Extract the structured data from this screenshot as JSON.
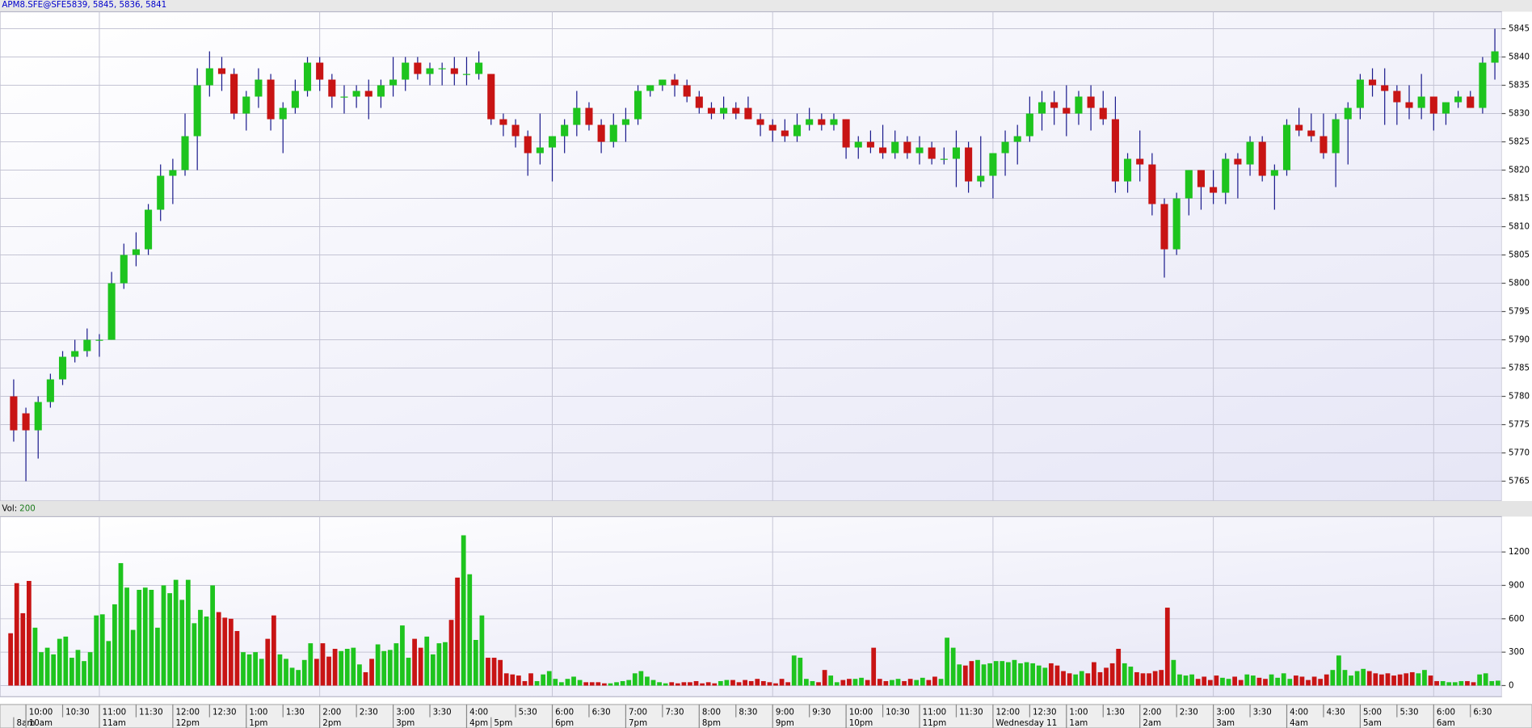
{
  "chart_data": {
    "type": "candlestick",
    "title": "APM8.SFE@SFE:",
    "subtitle": "5839, 5845, 5836, 5841",
    "up_color": "#1ec41e",
    "down_color": "#c81414",
    "wick_color": "#1a1a8c",
    "grid": true,
    "open": [
      5780,
      5777,
      5774,
      5779,
      5783,
      5787,
      5788,
      5790,
      5790,
      5800,
      5805,
      5806,
      5813,
      5819,
      5820,
      5826,
      5835,
      5838,
      5837,
      5830,
      5833,
      5836,
      5829,
      5831,
      5834,
      5839,
      5836,
      5833,
      5833,
      5834,
      5833,
      5835,
      5836,
      5839,
      5837,
      5838,
      5838,
      5837,
      5837,
      5837,
      5829,
      5828,
      5826,
      5823,
      5824,
      5826,
      5828,
      5831,
      5828,
      5825,
      5828,
      5829,
      5834,
      5835,
      5836,
      5835,
      5833,
      5831,
      5830,
      5831,
      5831,
      5829,
      5828,
      5827,
      5826,
      5828,
      5829,
      5828,
      5829,
      5824,
      5825,
      5824,
      5823,
      5825,
      5823,
      5824,
      5822,
      5822,
      5824,
      5818,
      5819,
      5823,
      5825,
      5826,
      5830,
      5832,
      5831,
      5830,
      5833,
      5831,
      5829,
      5818,
      5822,
      5821,
      5814,
      5806,
      5815,
      5820,
      5817,
      5816,
      5822,
      5821,
      5825,
      5819,
      5820,
      5828,
      5827,
      5826,
      5823,
      5829,
      5831,
      5836,
      5835,
      5834,
      5832,
      5831,
      5833,
      5830,
      5832,
      5833,
      5831,
      5839
    ],
    "high": [
      5783,
      5778,
      5780,
      5784,
      5788,
      5790,
      5792,
      5791,
      5802,
      5807,
      5809,
      5814,
      5821,
      5822,
      5830,
      5838,
      5841,
      5840,
      5838,
      5834,
      5838,
      5837,
      5832,
      5836,
      5840,
      5840,
      5837,
      5835,
      5835,
      5836,
      5836,
      5840,
      5840,
      5840,
      5839,
      5839,
      5840,
      5840,
      5841,
      5837,
      5830,
      5829,
      5827,
      5830,
      5826,
      5829,
      5834,
      5832,
      5829,
      5830,
      5831,
      5835,
      5835,
      5836,
      5837,
      5836,
      5834,
      5832,
      5833,
      5832,
      5833,
      5830,
      5829,
      5829,
      5830,
      5831,
      5830,
      5830,
      5829,
      5826,
      5827,
      5828,
      5827,
      5826,
      5826,
      5825,
      5824,
      5827,
      5825,
      5826,
      5823,
      5827,
      5828,
      5833,
      5834,
      5834,
      5835,
      5834,
      5835,
      5834,
      5833,
      5823,
      5827,
      5823,
      5815,
      5816,
      5820,
      5820,
      5820,
      5823,
      5823,
      5826,
      5826,
      5821,
      5829,
      5831,
      5830,
      5830,
      5830,
      5832,
      5837,
      5838,
      5838,
      5835,
      5835,
      5837,
      5833,
      5832,
      5834,
      5834,
      5840,
      5845
    ],
    "low": [
      5772,
      5765,
      5769,
      5778,
      5782,
      5786,
      5787,
      5787,
      5790,
      5799,
      5803,
      5805,
      5811,
      5814,
      5819,
      5820,
      5833,
      5834,
      5829,
      5827,
      5831,
      5827,
      5823,
      5830,
      5833,
      5834,
      5831,
      5830,
      5831,
      5829,
      5831,
      5833,
      5834,
      5836,
      5835,
      5835,
      5835,
      5835,
      5836,
      5828,
      5826,
      5824,
      5819,
      5821,
      5818,
      5823,
      5826,
      5827,
      5823,
      5824,
      5825,
      5828,
      5833,
      5834,
      5833,
      5832,
      5830,
      5829,
      5829,
      5829,
      5829,
      5826,
      5825,
      5825,
      5825,
      5827,
      5827,
      5827,
      5822,
      5822,
      5823,
      5822,
      5822,
      5822,
      5821,
      5821,
      5821,
      5817,
      5816,
      5817,
      5815,
      5819,
      5821,
      5825,
      5827,
      5828,
      5826,
      5828,
      5827,
      5828,
      5816,
      5816,
      5818,
      5812,
      5801,
      5805,
      5812,
      5813,
      5814,
      5814,
      5815,
      5819,
      5818,
      5813,
      5819,
      5826,
      5825,
      5822,
      5817,
      5821,
      5829,
      5833,
      5828,
      5828,
      5829,
      5829,
      5827,
      5828,
      5831,
      5831,
      5830,
      5836
    ],
    "close": [
      5774,
      5774,
      5779,
      5783,
      5787,
      5788,
      5790,
      5790,
      5800,
      5805,
      5806,
      5813,
      5819,
      5820,
      5826,
      5835,
      5838,
      5837,
      5830,
      5833,
      5836,
      5829,
      5831,
      5834,
      5839,
      5836,
      5833,
      5833,
      5834,
      5833,
      5835,
      5836,
      5839,
      5837,
      5838,
      5838,
      5837,
      5837,
      5839,
      5829,
      5828,
      5826,
      5823,
      5824,
      5826,
      5828,
      5831,
      5828,
      5825,
      5828,
      5829,
      5834,
      5835,
      5836,
      5835,
      5833,
      5831,
      5830,
      5831,
      5830,
      5829,
      5828,
      5827,
      5826,
      5828,
      5829,
      5828,
      5829,
      5824,
      5825,
      5824,
      5823,
      5825,
      5823,
      5824,
      5822,
      5822,
      5824,
      5818,
      5819,
      5823,
      5825,
      5826,
      5830,
      5832,
      5831,
      5830,
      5833,
      5831,
      5829,
      5818,
      5822,
      5821,
      5814,
      5806,
      5815,
      5820,
      5817,
      5816,
      5822,
      5821,
      5825,
      5819,
      5820,
      5828,
      5827,
      5826,
      5823,
      5829,
      5831,
      5836,
      5835,
      5834,
      5832,
      5831,
      5833,
      5830,
      5832,
      5833,
      5831,
      5839,
      5841
    ],
    "ylim": [
      5761.5,
      5848
    ],
    "yticks": [
      5765,
      5770,
      5775,
      5780,
      5785,
      5790,
      5795,
      5800,
      5805,
      5810,
      5815,
      5820,
      5825,
      5830,
      5835,
      5840,
      5845
    ],
    "volume": {
      "name": "Vol:",
      "ylim": [
        -100,
        1500
      ],
      "yticks": [
        0,
        300,
        600,
        900,
        1200
      ],
      "values": [
        470,
        920,
        650,
        940,
        520,
        300,
        340,
        280,
        420,
        440,
        250,
        320,
        220,
        300,
        630,
        640,
        400,
        730,
        1100,
        880,
        500,
        860,
        880,
        860,
        520,
        900,
        830,
        950,
        770,
        950,
        560,
        680,
        620,
        900,
        660,
        610,
        600,
        490,
        300,
        280,
        300,
        240,
        420,
        630,
        280,
        240,
        160,
        140,
        230,
        380,
        240,
        380,
        260,
        330,
        310,
        330,
        340,
        190,
        120,
        240,
        370,
        310,
        320,
        380,
        540,
        250,
        420,
        340,
        440,
        280,
        380,
        390,
        590,
        970,
        1350,
        1000,
        410,
        630,
        250,
        250,
        230,
        110,
        100,
        90,
        40,
        110,
        40,
        100,
        130,
        60,
        30,
        60,
        80,
        50,
        30,
        30,
        30,
        20,
        20,
        30,
        40,
        50,
        110,
        130,
        80,
        50,
        30,
        20,
        30,
        20,
        30,
        30,
        40,
        20,
        30,
        20,
        40,
        50,
        50,
        30,
        50,
        40,
        60,
        40,
        30,
        20,
        60,
        30,
        270,
        250,
        60,
        40,
        30,
        140,
        90,
        30,
        50,
        60,
        60,
        70,
        50,
        340,
        60,
        40,
        50,
        60,
        40,
        60,
        50,
        70,
        50,
        80,
        60,
        430,
        340,
        190,
        180,
        220,
        230,
        190,
        200,
        220,
        220,
        210,
        230,
        200,
        210,
        200,
        180,
        160,
        200,
        180,
        130,
        110,
        100,
        130,
        110,
        210,
        120,
        160,
        200,
        330,
        200,
        170,
        120,
        110,
        110,
        130,
        140,
        700,
        230,
        100,
        90,
        100,
        60,
        80,
        50,
        90,
        70,
        60,
        80,
        50,
        100,
        90,
        70,
        60,
        100,
        70,
        110,
        60,
        90,
        80,
        50,
        80,
        60,
        100,
        140,
        270,
        140,
        90,
        130,
        150,
        130,
        110,
        100,
        110,
        90,
        100,
        110,
        120,
        110,
        140,
        90,
        40,
        40,
        30,
        30,
        40,
        40,
        30,
        100,
        110,
        40,
        44
      ]
    },
    "xticks": [
      {
        "value": 1,
        "label": "10:00"
      },
      {
        "value": 4,
        "label": "10:30"
      },
      {
        "value": 7,
        "label": "11:00"
      },
      {
        "value": 10,
        "label": "11:30"
      },
      {
        "value": 13,
        "label": "12:00"
      },
      {
        "value": 16,
        "label": "12:30"
      },
      {
        "value": 19,
        "label": "1:00"
      },
      {
        "value": 22,
        "label": "1:30"
      },
      {
        "value": 25,
        "label": "2:00"
      },
      {
        "value": 28,
        "label": "2:30"
      },
      {
        "value": 31,
        "label": "3:00"
      },
      {
        "value": 34,
        "label": "3:30"
      },
      {
        "value": 37,
        "label": "4:00"
      },
      {
        "value": 41,
        "label": "5:30"
      },
      {
        "value": 44,
        "label": "6:00"
      },
      {
        "value": 47,
        "label": "6:30"
      },
      {
        "value": 50,
        "label": "7:00"
      },
      {
        "value": 53,
        "label": "7:30"
      },
      {
        "value": 56,
        "label": "8:00"
      },
      {
        "value": 59,
        "label": "8:30"
      },
      {
        "value": 62,
        "label": "9:00"
      },
      {
        "value": 65,
        "label": "9:30"
      },
      {
        "value": 68,
        "label": "10:00"
      },
      {
        "value": 71,
        "label": "10:30"
      },
      {
        "value": 74,
        "label": "11:00"
      },
      {
        "value": 77,
        "label": "11:30"
      },
      {
        "value": 80,
        "label": "12:00"
      },
      {
        "value": 83,
        "label": "12:30"
      },
      {
        "value": 86,
        "label": "1:00"
      },
      {
        "value": 89,
        "label": "1:30"
      },
      {
        "value": 92,
        "label": "2:00"
      },
      {
        "value": 95,
        "label": "2:30"
      },
      {
        "value": 98,
        "label": "3:00"
      },
      {
        "value": 101,
        "label": "3:30"
      },
      {
        "value": 104,
        "label": "4:00"
      },
      {
        "value": 107,
        "label": "4:30"
      },
      {
        "value": 110,
        "label": "5:00"
      },
      {
        "value": 113,
        "label": "5:30"
      },
      {
        "value": 116,
        "label": "6:00"
      },
      {
        "value": 119,
        "label": "6:30"
      }
    ],
    "xticks2": [
      {
        "value": 0,
        "label": "8am"
      },
      {
        "value": 1,
        "label": "10am"
      },
      {
        "value": 7,
        "label": "11am",
        "grid": true
      },
      {
        "value": 13,
        "label": "12pm"
      },
      {
        "value": 19,
        "label": "1pm"
      },
      {
        "value": 25,
        "label": "2pm",
        "grid": true
      },
      {
        "value": 31,
        "label": "3pm"
      },
      {
        "value": 37,
        "label": "4pm"
      },
      {
        "value": 39,
        "label": "5pm"
      },
      {
        "value": 44,
        "label": "6pm",
        "grid": true
      },
      {
        "value": 50,
        "label": "7pm"
      },
      {
        "value": 56,
        "label": "8pm"
      },
      {
        "value": 62,
        "label": "9pm",
        "grid": true
      },
      {
        "value": 68,
        "label": "10pm"
      },
      {
        "value": 74,
        "label": "11pm"
      },
      {
        "value": 80,
        "label": "Wednesday 11",
        "grid": true
      },
      {
        "value": 86,
        "label": "1am"
      },
      {
        "value": 92,
        "label": "2am"
      },
      {
        "value": 98,
        "label": "3am",
        "grid": true
      },
      {
        "value": 104,
        "label": "4am"
      },
      {
        "value": 110,
        "label": "5am"
      },
      {
        "value": 116,
        "label": "6am",
        "grid": true
      }
    ]
  }
}
